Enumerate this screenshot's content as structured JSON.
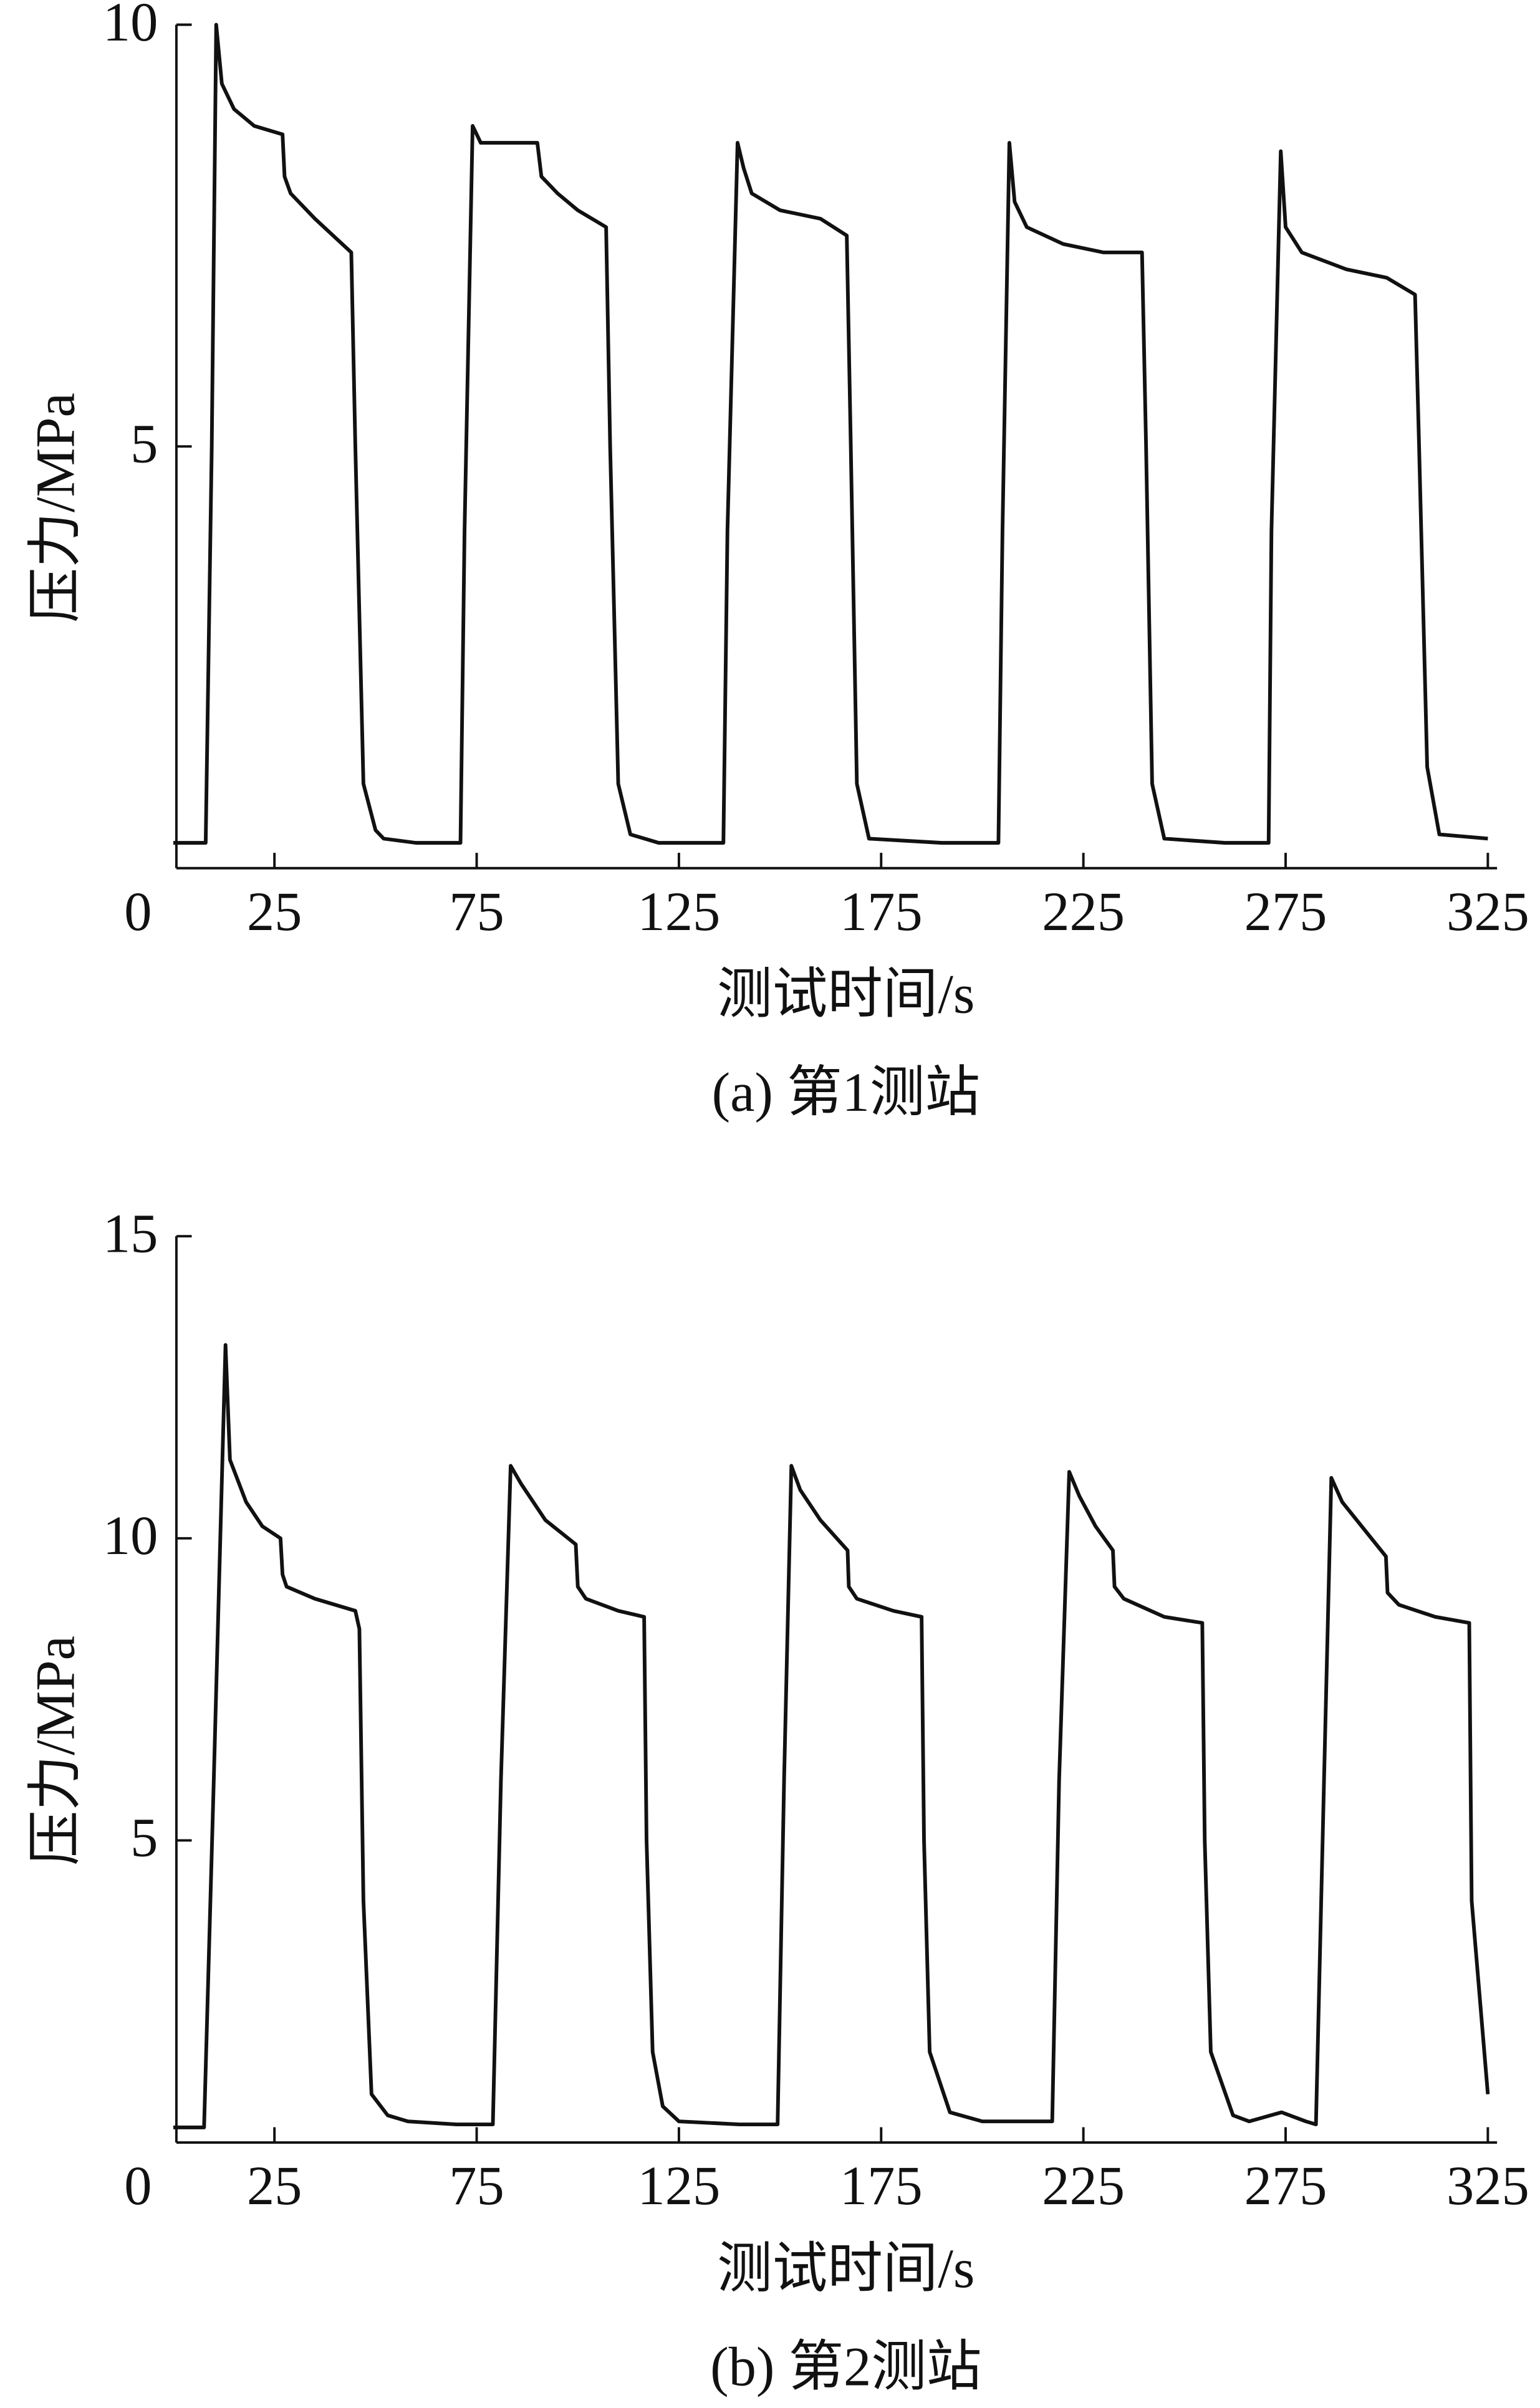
{
  "chart_data": [
    {
      "type": "line",
      "ylabel": "压力/MPa",
      "xlabel": "测试时间/s",
      "caption": "(a) 第1测站",
      "xlim": [
        0,
        325
      ],
      "xticks": [
        0,
        25,
        75,
        125,
        175,
        225,
        275,
        325
      ],
      "ylim": [
        0,
        10
      ],
      "yticks": [
        5,
        10
      ],
      "x": [
        0,
        8,
        9.5,
        10.6,
        12,
        15,
        20,
        27,
        27.5,
        29,
        35,
        44,
        45,
        47,
        50,
        52,
        60,
        71,
        72,
        74,
        76,
        80,
        90,
        91,
        95,
        100,
        107,
        108,
        110,
        113,
        120,
        136,
        137,
        139.5,
        141,
        143,
        150,
        160,
        166.5,
        167.5,
        169,
        172,
        190,
        204,
        205,
        206.7,
        208,
        211,
        220,
        230,
        239.5,
        240.5,
        242,
        245,
        260,
        270.8,
        271.5,
        273.8,
        275,
        279,
        290,
        300,
        307,
        308,
        310,
        313,
        325
      ],
      "series": [
        {
          "color": "#111111",
          "values": [
            0.3,
            0.3,
            5,
            10,
            9.3,
            9.0,
            8.8,
            8.7,
            8.2,
            8.0,
            7.7,
            7.3,
            5,
            1.0,
            0.45,
            0.35,
            0.3,
            0.3,
            4,
            8.8,
            8.6,
            8.6,
            8.6,
            8.2,
            8.0,
            7.8,
            7.6,
            5,
            1.0,
            0.4,
            0.3,
            0.3,
            4,
            8.6,
            8.3,
            8.0,
            7.8,
            7.7,
            7.5,
            5,
            1.0,
            0.35,
            0.3,
            0.3,
            4,
            8.6,
            7.9,
            7.6,
            7.4,
            7.3,
            7.3,
            5,
            1.0,
            0.35,
            0.3,
            0.3,
            4,
            8.5,
            7.6,
            7.3,
            7.1,
            7.0,
            6.8,
            5,
            1.2,
            0.4,
            0.35
          ]
        }
      ]
    },
    {
      "type": "line",
      "ylabel": "压力/MPa",
      "xlabel": "测试时间/s",
      "caption": "(b) 第2测站",
      "xlim": [
        0,
        325
      ],
      "xticks": [
        0,
        25,
        75,
        125,
        175,
        225,
        275,
        325
      ],
      "ylim": [
        0,
        15
      ],
      "yticks": [
        5,
        10,
        15
      ],
      "x": [
        0,
        7.6,
        10,
        12.9,
        14,
        18,
        22,
        26.5,
        27,
        28,
        35,
        45,
        46,
        47,
        49,
        53,
        58,
        70,
        79,
        81,
        83.4,
        86,
        92,
        99.5,
        100,
        102,
        110,
        116.4,
        117,
        118.5,
        121,
        125,
        140,
        149.4,
        151,
        152.8,
        155,
        160,
        166.7,
        167,
        169,
        178,
        185,
        185.6,
        187,
        192,
        200,
        217.3,
        219,
        221.5,
        224,
        228,
        232.3,
        232.7,
        235,
        245,
        254.4,
        255,
        256.5,
        262,
        266,
        274,
        280,
        282.5,
        284.5,
        286.3,
        289,
        295,
        299.8,
        300.2,
        303,
        312,
        320.4,
        321,
        325
      ],
      "series": [
        {
          "color": "#111111",
          "values": [
            0.25,
            0.25,
            6,
            13.2,
            11.3,
            10.6,
            10.2,
            10.0,
            9.4,
            9.2,
            9.0,
            8.8,
            8.5,
            4,
            0.8,
            0.45,
            0.35,
            0.3,
            0.3,
            6,
            11.2,
            10.9,
            10.3,
            9.9,
            9.2,
            9.0,
            8.8,
            8.7,
            5,
            1.5,
            0.6,
            0.35,
            0.3,
            0.3,
            6,
            11.2,
            10.8,
            10.3,
            9.8,
            9.2,
            9.0,
            8.8,
            8.7,
            5,
            1.5,
            0.5,
            0.35,
            0.35,
            6,
            11.1,
            10.7,
            10.2,
            9.8,
            9.2,
            9.0,
            8.7,
            8.6,
            5,
            1.5,
            0.45,
            0.35,
            0.5,
            0.35,
            0.3,
            6,
            11.0,
            10.6,
            10.1,
            9.7,
            9.1,
            8.9,
            8.7,
            8.6,
            4,
            0.8
          ]
        }
      ]
    }
  ]
}
